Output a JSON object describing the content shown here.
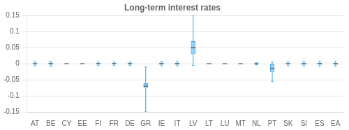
{
  "chart_data": {
    "type": "box",
    "title": "Long-term interest rates",
    "categories": [
      "AT",
      "BE",
      "CY",
      "EE",
      "FI",
      "FR",
      "DE",
      "GR",
      "IE",
      "IT",
      "LV",
      "LT",
      "LU",
      "MT",
      "NL",
      "PT",
      "SK",
      "SI",
      "ES",
      "EA"
    ],
    "medians": [
      0.0,
      0.0,
      0.0,
      0.0,
      0.0,
      0.0,
      0.0,
      -0.07,
      0.0,
      0.0,
      0.05,
      0.0,
      0.0,
      0.0,
      0.0,
      -0.015,
      0.0,
      0.0,
      0.0,
      0.0
    ],
    "box_lower": [
      -0.002,
      -0.003,
      0.0,
      0.0,
      -0.002,
      -0.002,
      -0.002,
      -0.075,
      -0.003,
      -0.003,
      0.03,
      0.0,
      0.0,
      0.0,
      -0.001,
      -0.025,
      -0.002,
      -0.003,
      -0.003,
      -0.003
    ],
    "box_upper": [
      0.002,
      0.003,
      0.0,
      0.0,
      0.002,
      0.002,
      0.002,
      -0.06,
      0.003,
      0.003,
      0.07,
      0.0,
      0.0,
      0.0,
      0.001,
      0.0,
      0.002,
      0.003,
      0.003,
      0.003
    ],
    "whisker_lower": [
      -0.006,
      -0.008,
      0.0,
      0.0,
      -0.005,
      -0.005,
      -0.005,
      -0.15,
      -0.007,
      -0.007,
      -0.005,
      0.0,
      0.0,
      0.0,
      -0.003,
      -0.055,
      -0.006,
      -0.007,
      -0.008,
      -0.007
    ],
    "whisker_upper": [
      0.006,
      0.008,
      0.0,
      0.0,
      0.005,
      0.005,
      0.005,
      -0.01,
      0.007,
      0.007,
      0.15,
      0.0,
      0.0,
      0.0,
      0.003,
      0.005,
      0.006,
      0.007,
      0.008,
      0.007
    ],
    "ylim": [
      -0.15,
      0.15
    ],
    "yticks": [
      -0.15,
      -0.1,
      -0.05,
      0,
      0.05,
      0.1,
      0.15
    ],
    "grid": true
  }
}
